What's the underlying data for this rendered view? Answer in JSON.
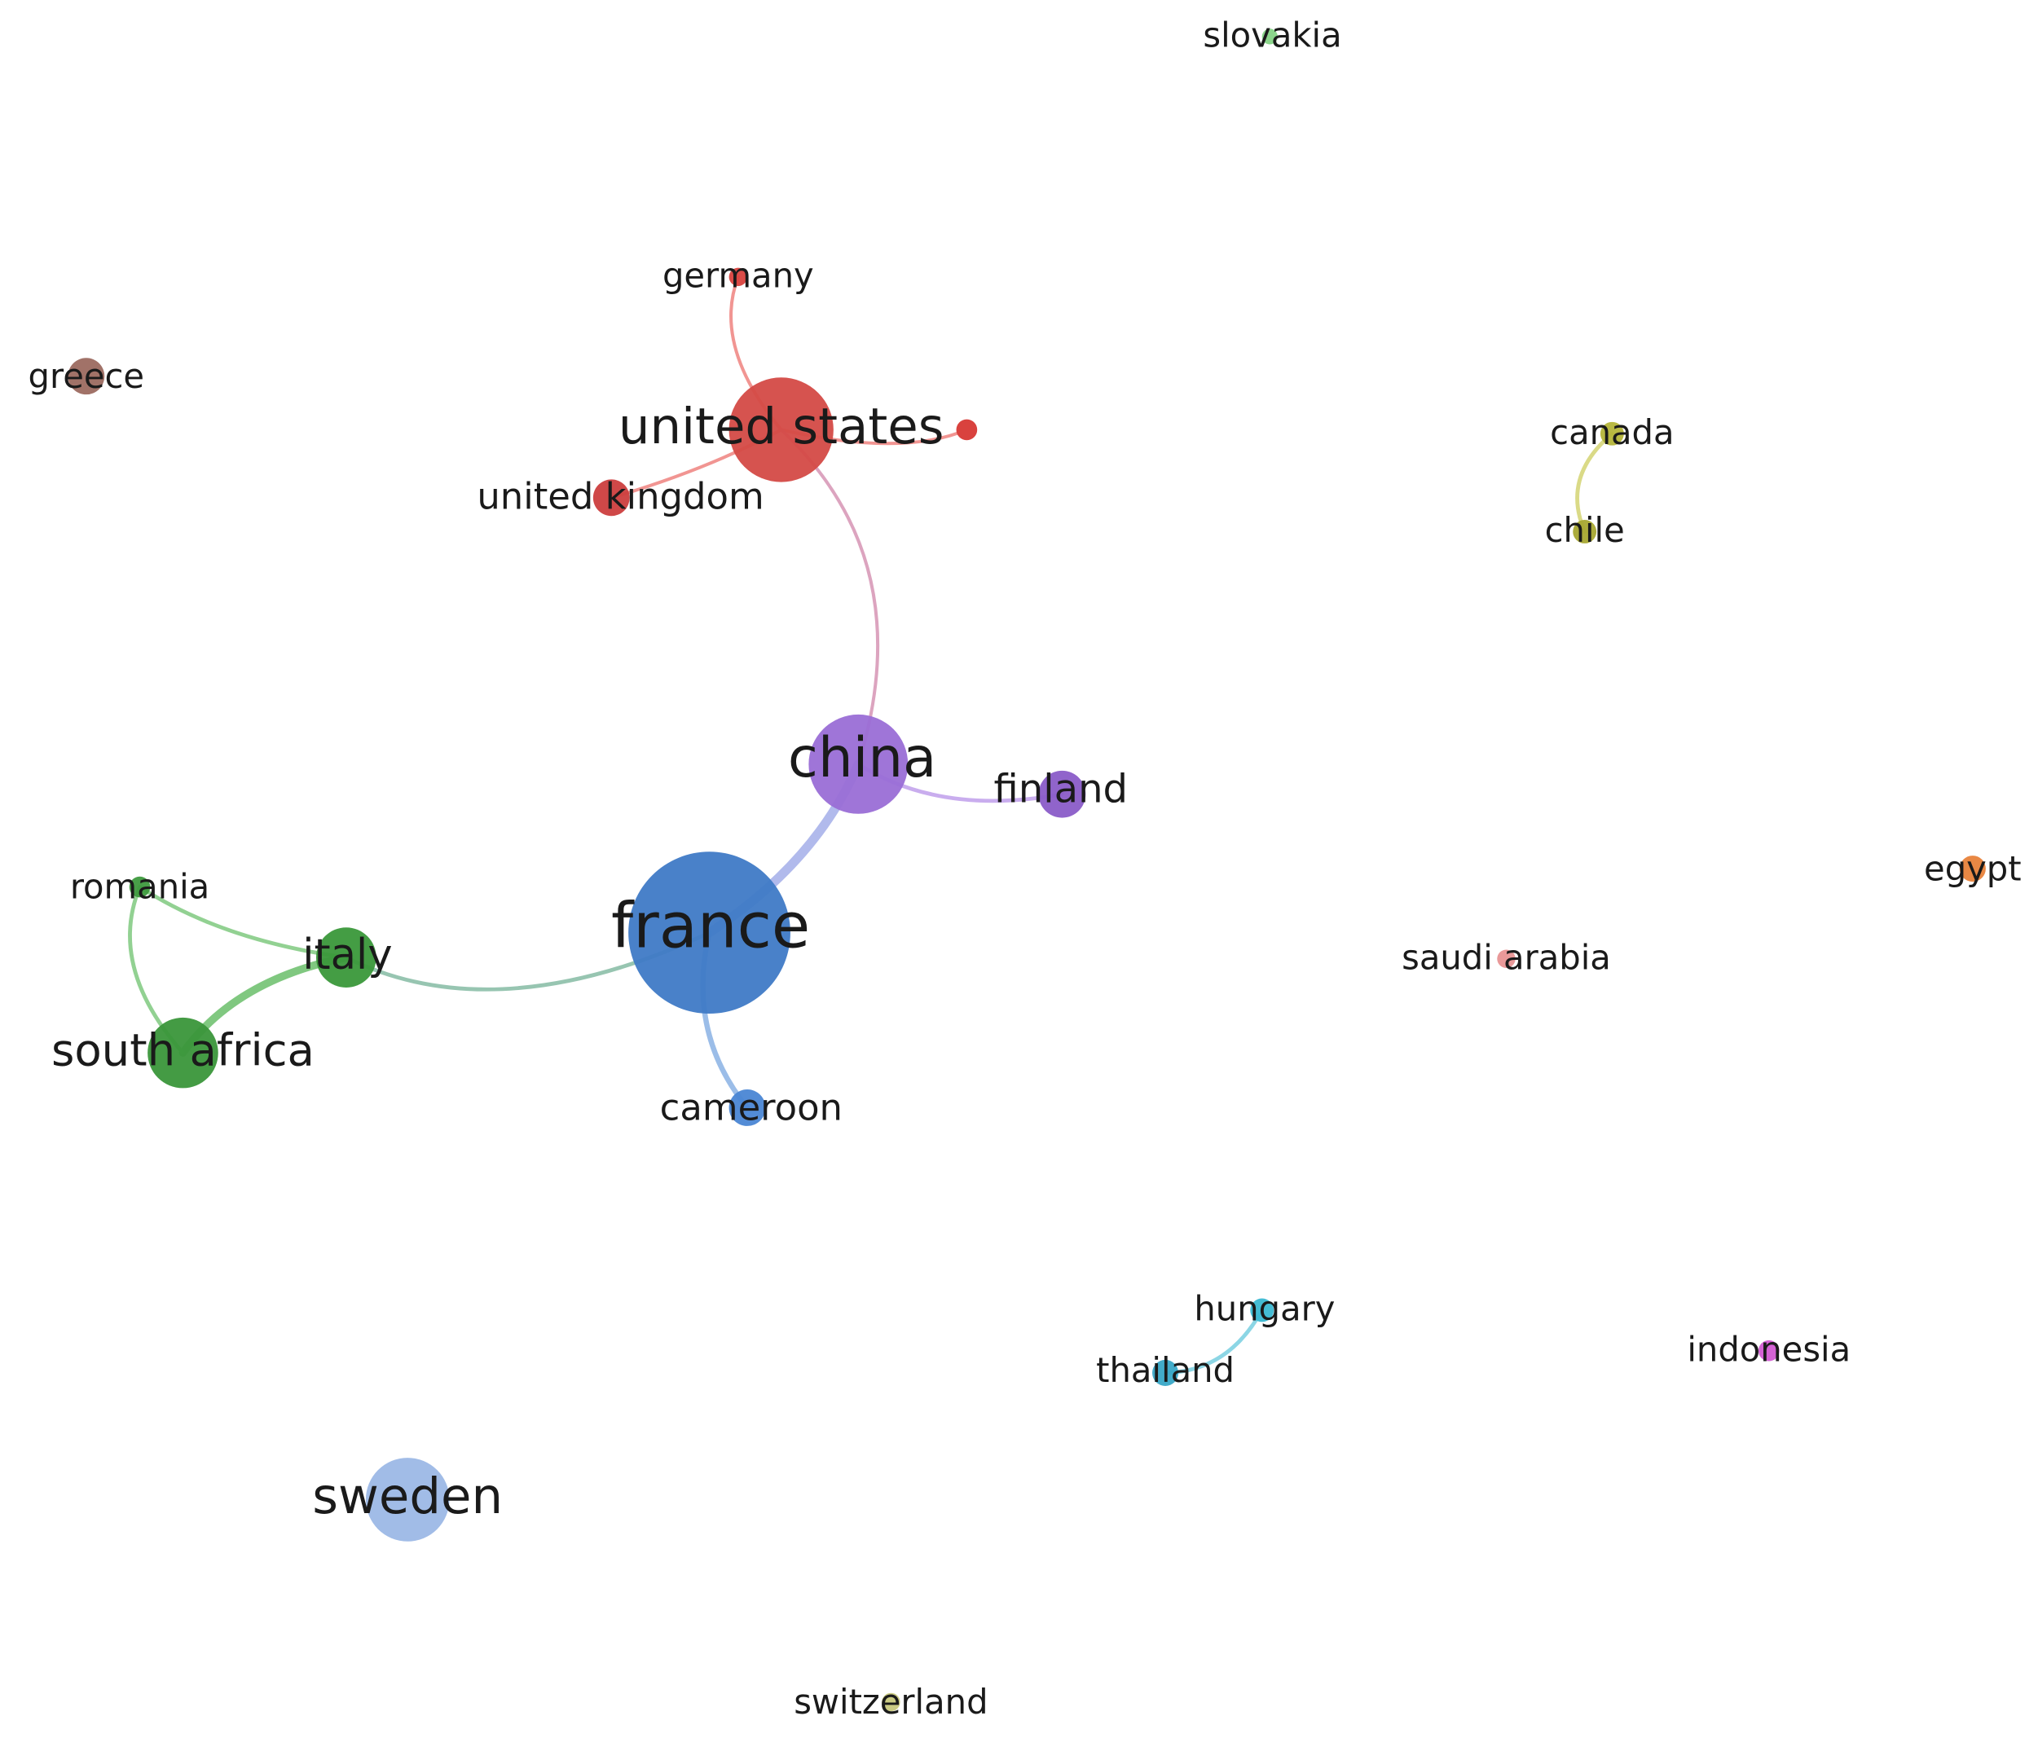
{
  "nodes": [
    {
      "label": "slovakia"
    },
    {
      "label": "germany"
    },
    {
      "label": "greece"
    },
    {
      "label": "united states"
    },
    {
      "label": "united kingdom"
    },
    {
      "label": "canada"
    },
    {
      "label": "chile"
    },
    {
      "label": "china"
    },
    {
      "label": "finland"
    },
    {
      "label": "egypt"
    },
    {
      "label": "romania"
    },
    {
      "label": "france"
    },
    {
      "label": "italy"
    },
    {
      "label": "saudi arabia"
    },
    {
      "label": "south africa"
    },
    {
      "label": "cameroon"
    },
    {
      "label": "hungary"
    },
    {
      "label": "indonesia"
    },
    {
      "label": "thailand"
    },
    {
      "label": "sweden"
    },
    {
      "label": "switzerland"
    }
  ]
}
